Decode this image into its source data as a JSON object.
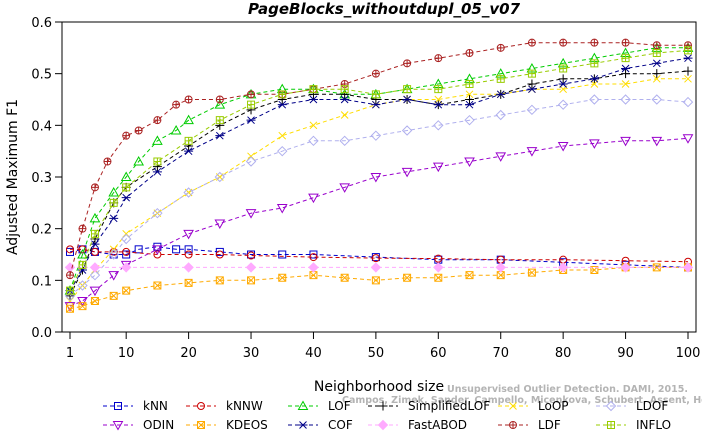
{
  "chart_data": {
    "type": "line",
    "title": "PageBlocks_withoutdupl_05_v07",
    "xlabel": "Neighborhood size",
    "ylabel": "Adjusted Maximum F1",
    "xlim": [
      1,
      100
    ],
    "ylim": [
      0.0,
      0.6
    ],
    "xticks": [
      "1",
      "10",
      "20",
      "30",
      "40",
      "50",
      "60",
      "70",
      "80",
      "90",
      "100"
    ],
    "yticks": [
      "0.0",
      "0.1",
      "0.2",
      "0.3",
      "0.4",
      "0.5",
      "0.6"
    ],
    "grid": false,
    "legend_position": "bottom",
    "watermark_line1": "Unsupervised Outlier Detection. DAMI, 2015.",
    "watermark_line2": "Campos, Zimek, Sander, Campello, Micenkova, Schubert, Assent, Houle",
    "series": [
      {
        "name": "kNN",
        "color": "#0000cc",
        "marker": "square",
        "dash": "4,3",
        "x": [
          1,
          3,
          5,
          8,
          10,
          12,
          15,
          18,
          20,
          25,
          30,
          35,
          40,
          50,
          60,
          70,
          80,
          90,
          100
        ],
        "y": [
          0.155,
          0.16,
          0.155,
          0.15,
          0.15,
          0.16,
          0.165,
          0.16,
          0.16,
          0.155,
          0.15,
          0.15,
          0.15,
          0.145,
          0.14,
          0.14,
          0.135,
          0.13,
          0.125
        ]
      },
      {
        "name": "kNNW",
        "color": "#cc0000",
        "marker": "circle",
        "dash": "4,3",
        "x": [
          1,
          3,
          5,
          8,
          10,
          15,
          20,
          25,
          30,
          40,
          50,
          60,
          70,
          80,
          90,
          100
        ],
        "y": [
          0.16,
          0.16,
          0.155,
          0.155,
          0.155,
          0.15,
          0.15,
          0.15,
          0.148,
          0.145,
          0.143,
          0.142,
          0.14,
          0.14,
          0.138,
          0.136
        ]
      },
      {
        "name": "LOF",
        "color": "#00cc00",
        "marker": "triangle",
        "dash": "4,3",
        "x": [
          1,
          3,
          5,
          8,
          10,
          12,
          15,
          18,
          20,
          25,
          30,
          35,
          40,
          45,
          50,
          55,
          60,
          65,
          70,
          75,
          80,
          85,
          90,
          95,
          100
        ],
        "y": [
          0.08,
          0.15,
          0.22,
          0.27,
          0.3,
          0.33,
          0.37,
          0.39,
          0.41,
          0.44,
          0.46,
          0.47,
          0.47,
          0.46,
          0.46,
          0.47,
          0.48,
          0.49,
          0.5,
          0.51,
          0.52,
          0.53,
          0.54,
          0.55,
          0.55
        ]
      },
      {
        "name": "SimplifiedLOF",
        "color": "#000000",
        "marker": "plus",
        "dash": "4,3",
        "x": [
          1,
          3,
          5,
          8,
          10,
          15,
          20,
          25,
          30,
          35,
          40,
          45,
          50,
          55,
          60,
          65,
          70,
          75,
          80,
          85,
          90,
          95,
          100
        ],
        "y": [
          0.07,
          0.12,
          0.18,
          0.25,
          0.28,
          0.32,
          0.36,
          0.4,
          0.43,
          0.45,
          0.46,
          0.46,
          0.45,
          0.45,
          0.44,
          0.45,
          0.46,
          0.48,
          0.49,
          0.49,
          0.5,
          0.5,
          0.505
        ]
      },
      {
        "name": "LoOP",
        "color": "#ffdd00",
        "marker": "x",
        "dash": "4,3",
        "x": [
          1,
          3,
          5,
          8,
          10,
          15,
          20,
          25,
          30,
          35,
          40,
          45,
          50,
          55,
          60,
          65,
          70,
          75,
          80,
          85,
          90,
          95,
          100
        ],
        "y": [
          0.06,
          0.09,
          0.12,
          0.16,
          0.19,
          0.23,
          0.27,
          0.3,
          0.34,
          0.38,
          0.4,
          0.42,
          0.44,
          0.45,
          0.45,
          0.46,
          0.46,
          0.47,
          0.47,
          0.48,
          0.48,
          0.49,
          0.49
        ]
      },
      {
        "name": "LDOF",
        "color": "#b0b0ee",
        "marker": "diamond",
        "dash": "4,3",
        "x": [
          1,
          3,
          5,
          8,
          10,
          15,
          20,
          25,
          30,
          35,
          40,
          45,
          50,
          55,
          60,
          65,
          70,
          75,
          80,
          85,
          90,
          95,
          100
        ],
        "y": [
          0.07,
          0.09,
          0.11,
          0.15,
          0.18,
          0.23,
          0.27,
          0.3,
          0.33,
          0.35,
          0.37,
          0.37,
          0.38,
          0.39,
          0.4,
          0.41,
          0.42,
          0.43,
          0.44,
          0.45,
          0.45,
          0.45,
          0.445
        ]
      },
      {
        "name": "ODIN",
        "color": "#9900cc",
        "marker": "triangle-down",
        "dash": "4,3",
        "x": [
          1,
          3,
          5,
          8,
          10,
          15,
          20,
          25,
          30,
          35,
          40,
          45,
          50,
          55,
          60,
          65,
          70,
          75,
          80,
          85,
          90,
          95,
          100
        ],
        "y": [
          0.05,
          0.06,
          0.08,
          0.11,
          0.13,
          0.16,
          0.19,
          0.21,
          0.23,
          0.24,
          0.26,
          0.28,
          0.3,
          0.31,
          0.32,
          0.33,
          0.34,
          0.35,
          0.36,
          0.365,
          0.37,
          0.37,
          0.375
        ]
      },
      {
        "name": "KDEOS",
        "color": "#ffaa00",
        "marker": "square-x",
        "dash": "4,3",
        "x": [
          1,
          3,
          5,
          8,
          10,
          15,
          20,
          25,
          30,
          35,
          40,
          45,
          50,
          55,
          60,
          65,
          70,
          75,
          80,
          85,
          90,
          95,
          100
        ],
        "y": [
          0.045,
          0.05,
          0.06,
          0.07,
          0.08,
          0.09,
          0.095,
          0.1,
          0.1,
          0.105,
          0.11,
          0.105,
          0.1,
          0.105,
          0.105,
          0.11,
          0.11,
          0.115,
          0.12,
          0.12,
          0.125,
          0.125,
          0.125
        ]
      },
      {
        "name": "COF",
        "color": "#000088",
        "marker": "asterisk",
        "dash": "4,3",
        "x": [
          1,
          3,
          5,
          8,
          10,
          15,
          20,
          25,
          30,
          35,
          40,
          45,
          50,
          55,
          60,
          65,
          70,
          75,
          80,
          85,
          90,
          95,
          100
        ],
        "y": [
          0.08,
          0.12,
          0.17,
          0.22,
          0.26,
          0.31,
          0.35,
          0.38,
          0.41,
          0.44,
          0.45,
          0.45,
          0.44,
          0.45,
          0.44,
          0.44,
          0.46,
          0.47,
          0.48,
          0.49,
          0.51,
          0.52,
          0.53
        ]
      },
      {
        "name": "FastABOD",
        "color": "#ffaaff",
        "marker": "diamond-filled",
        "dash": "4,3",
        "x": [
          1,
          5,
          10,
          20,
          30,
          40,
          50,
          60,
          70,
          80,
          90,
          100
        ],
        "y": [
          0.125,
          0.125,
          0.125,
          0.125,
          0.125,
          0.125,
          0.125,
          0.125,
          0.125,
          0.125,
          0.125,
          0.125
        ]
      },
      {
        "name": "LDF",
        "color": "#aa2222",
        "marker": "circle-plus",
        "dash": "4,3",
        "x": [
          1,
          3,
          5,
          7,
          10,
          12,
          15,
          18,
          20,
          25,
          30,
          35,
          40,
          45,
          50,
          55,
          60,
          65,
          70,
          75,
          80,
          85,
          90,
          95,
          100
        ],
        "y": [
          0.11,
          0.2,
          0.28,
          0.33,
          0.38,
          0.39,
          0.41,
          0.44,
          0.45,
          0.45,
          0.46,
          0.46,
          0.47,
          0.48,
          0.5,
          0.52,
          0.53,
          0.54,
          0.55,
          0.56,
          0.56,
          0.56,
          0.56,
          0.555,
          0.555
        ]
      },
      {
        "name": "INFLO",
        "color": "#99cc00",
        "marker": "square-plus",
        "dash": "4,3",
        "x": [
          1,
          3,
          5,
          8,
          10,
          15,
          20,
          25,
          30,
          35,
          40,
          45,
          50,
          55,
          60,
          65,
          70,
          75,
          80,
          85,
          90,
          95,
          100
        ],
        "y": [
          0.08,
          0.13,
          0.19,
          0.25,
          0.28,
          0.33,
          0.37,
          0.41,
          0.44,
          0.46,
          0.47,
          0.47,
          0.46,
          0.47,
          0.47,
          0.48,
          0.49,
          0.5,
          0.51,
          0.52,
          0.53,
          0.54,
          0.545
        ]
      }
    ],
    "legend_order": [
      "kNN",
      "kNNW",
      "LOF",
      "SimplifiedLOF",
      "LoOP",
      "LDOF",
      "ODIN",
      "KDEOS",
      "COF",
      "FastABOD",
      "LDF",
      "INFLO"
    ]
  }
}
